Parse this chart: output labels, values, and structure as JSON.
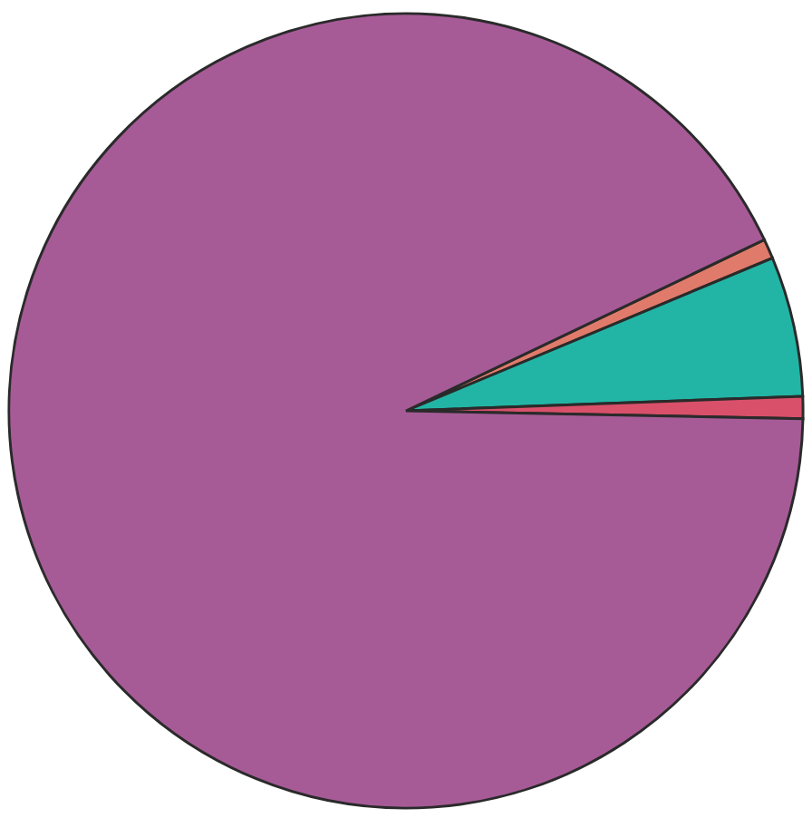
{
  "chart_data": {
    "type": "pie",
    "categories": [
      null,
      null,
      null,
      null
    ],
    "values": [
      0.8,
      5.7,
      0.9,
      92.6
    ],
    "colors": [
      "#e07a6a",
      "#22b5a6",
      "#d9506a",
      "#a65b97"
    ]
  }
}
